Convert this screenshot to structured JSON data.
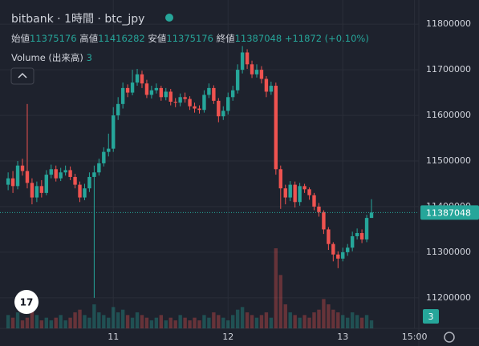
{
  "chart_data": {
    "type": "candlestick",
    "title": "bitbank · 1時間 · btc_jpy",
    "ohlc_labels": [
      "始値",
      "高値",
      "安値",
      "終値"
    ],
    "change_label": "+11872 (+0.10%)",
    "x": [
      2,
      3,
      4,
      5,
      6,
      7,
      8,
      9,
      10,
      11,
      12,
      13,
      14,
      15,
      16,
      17,
      18,
      19,
      20,
      21,
      22,
      23,
      24,
      25,
      26,
      27,
      28,
      29,
      30,
      31,
      32,
      33,
      34,
      35,
      36,
      37,
      38,
      39,
      40,
      41,
      42,
      43,
      44,
      45,
      46,
      47,
      48,
      49,
      50,
      51,
      52,
      53,
      54,
      55,
      56,
      57,
      58,
      59,
      60,
      61,
      62,
      63,
      64,
      65,
      66,
      67,
      68,
      69,
      70,
      71,
      72,
      73,
      74,
      75,
      76,
      77,
      78
    ],
    "open": [
      11448000,
      11462000,
      11445000,
      11490000,
      11478000,
      11452000,
      11420000,
      11445000,
      11430000,
      11470000,
      11482000,
      11462000,
      11475000,
      11480000,
      11465000,
      11448000,
      11420000,
      11440000,
      11465000,
      11475000,
      11495000,
      11520000,
      11527000,
      11600000,
      11625000,
      11660000,
      11650000,
      11672000,
      11690000,
      11670000,
      11645000,
      11655000,
      11660000,
      11640000,
      11652000,
      11630000,
      11628000,
      11640000,
      11636000,
      11620000,
      11615000,
      11612000,
      11645000,
      11660000,
      11632000,
      11598000,
      11610000,
      11640000,
      11655000,
      11700000,
      11738000,
      11712000,
      11690000,
      11700000,
      11680000,
      11652000,
      11665000,
      11482000,
      11440000,
      11420000,
      11448000,
      11410000,
      11445000,
      11438000,
      11425000,
      11400000,
      11388000,
      11350000,
      11318000,
      11295000,
      11286000,
      11300000,
      11310000,
      11335000,
      11342000,
      11328000,
      11375176
    ],
    "high": [
      11475000,
      11478000,
      11500000,
      11505000,
      11625000,
      11462000,
      11455000,
      11458000,
      11480000,
      11492000,
      11490000,
      11485000,
      11490000,
      11488000,
      11472000,
      11455000,
      11450000,
      11475000,
      11490000,
      11505000,
      11530000,
      11560000,
      11618000,
      11640000,
      11672000,
      11668000,
      11700000,
      11702000,
      11698000,
      11678000,
      11665000,
      11670000,
      11665000,
      11660000,
      11658000,
      11638000,
      11648000,
      11650000,
      11642000,
      11628000,
      11622000,
      11655000,
      11670000,
      11666000,
      11638000,
      11620000,
      11650000,
      11665000,
      11712000,
      11752000,
      11745000,
      11720000,
      11712000,
      11708000,
      11686000,
      11674000,
      11672000,
      11490000,
      11448000,
      11456000,
      11455000,
      11452000,
      11450000,
      11442000,
      11430000,
      11408000,
      11392000,
      11355000,
      11322000,
      11302000,
      11310000,
      11318000,
      11345000,
      11352000,
      11350000,
      11382000,
      11416282
    ],
    "low": [
      11436000,
      11430000,
      11438000,
      11468000,
      11440000,
      11405000,
      11410000,
      11420000,
      11425000,
      11462000,
      11455000,
      11456000,
      11468000,
      11458000,
      11440000,
      11410000,
      11414000,
      11432000,
      11200000,
      11468000,
      11488000,
      11510000,
      11520000,
      11590000,
      11615000,
      11640000,
      11644000,
      11665000,
      11660000,
      11638000,
      11637000,
      11648000,
      11632000,
      11633000,
      11622000,
      11618000,
      11620000,
      11628000,
      11612000,
      11606000,
      11604000,
      11606000,
      11638000,
      11625000,
      11585000,
      11590000,
      11602000,
      11632000,
      11648000,
      11692000,
      11702000,
      11682000,
      11683000,
      11670000,
      11640000,
      11645000,
      11470000,
      11395000,
      11405000,
      11412000,
      11398000,
      11402000,
      11430000,
      11415000,
      11392000,
      11378000,
      11340000,
      11305000,
      11280000,
      11265000,
      11280000,
      11292000,
      11302000,
      11328000,
      11320000,
      11322000,
      11375176
    ],
    "close": [
      11462000,
      11445000,
      11490000,
      11478000,
      11452000,
      11420000,
      11445000,
      11430000,
      11470000,
      11482000,
      11462000,
      11475000,
      11480000,
      11465000,
      11448000,
      11420000,
      11440000,
      11465000,
      11475000,
      11495000,
      11520000,
      11527000,
      11600000,
      11625000,
      11660000,
      11650000,
      11672000,
      11690000,
      11670000,
      11645000,
      11655000,
      11660000,
      11640000,
      11652000,
      11630000,
      11628000,
      11640000,
      11636000,
      11620000,
      11615000,
      11612000,
      11645000,
      11660000,
      11632000,
      11598000,
      11610000,
      11640000,
      11655000,
      11700000,
      11738000,
      11712000,
      11690000,
      11700000,
      11680000,
      11652000,
      11665000,
      11482000,
      11440000,
      11420000,
      11448000,
      11410000,
      11445000,
      11438000,
      11425000,
      11400000,
      11388000,
      11350000,
      11318000,
      11295000,
      11286000,
      11300000,
      11310000,
      11335000,
      11342000,
      11328000,
      11375176,
      11387048
    ],
    "up_color": "#26a69a",
    "down_color": "#ef5350",
    "volume": {
      "name": "Volume (出来高)",
      "values": [
        5,
        4,
        6,
        3,
        4,
        8,
        5,
        3,
        4,
        3,
        4,
        5,
        3,
        4,
        6,
        7,
        5,
        4,
        9,
        6,
        5,
        4,
        8,
        6,
        7,
        5,
        4,
        6,
        5,
        4,
        3,
        4,
        5,
        3,
        4,
        3,
        5,
        4,
        3,
        4,
        3,
        5,
        4,
        6,
        5,
        4,
        3,
        5,
        7,
        8,
        6,
        5,
        4,
        5,
        6,
        4,
        30,
        20,
        9,
        6,
        5,
        4,
        5,
        4,
        6,
        7,
        11,
        9,
        7,
        6,
        5,
        4,
        6,
        5,
        4,
        5,
        3
      ]
    },
    "xlim": [
      0.3,
      87.9
    ],
    "xticks": [
      {
        "value": 24,
        "label": "11"
      },
      {
        "value": 48,
        "label": "12"
      },
      {
        "value": 72,
        "label": "13"
      },
      {
        "value": 87,
        "label": "15:00"
      }
    ],
    "ylim": [
      11133000,
      11853000
    ],
    "yticks": [
      11200000,
      11300000,
      11400000,
      11500000,
      11600000,
      11700000,
      11800000
    ],
    "grid": true
  }
}
